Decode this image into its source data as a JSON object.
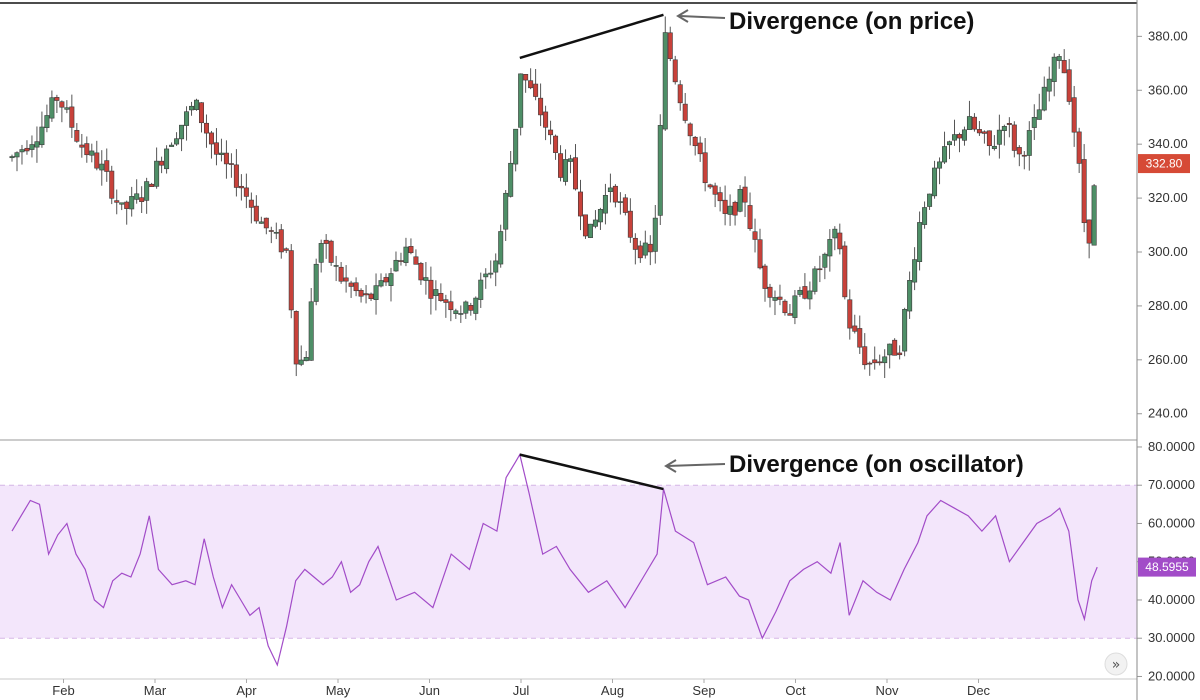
{
  "colors": {
    "up": "#4e8f67",
    "down": "#c8413a",
    "oscillator": "#a24cc8",
    "band_fill": "#f3e6fb",
    "band_line": "#d5b6e6",
    "divergence": "#111111",
    "price_badge": "#d64a36",
    "osc_badge": "#a24cc8"
  },
  "chart_data": [
    {
      "type": "candlestick",
      "title": "",
      "ylim": [
        231,
        392
      ],
      "yticks": [
        "240.00",
        "260.00",
        "280.00",
        "300.00",
        "320.00",
        "340.00",
        "360.00",
        "380.00"
      ],
      "ytick_values": [
        240,
        260,
        280,
        300,
        320,
        340,
        360,
        380
      ],
      "last_price_label": "332.80",
      "last_price": 332.8,
      "divergence": {
        "from": {
          "month": 5.55,
          "value": 372
        },
        "to": {
          "month": 7.12,
          "value": 388
        }
      },
      "annotation": "Divergence (on price)",
      "series": [
        {
          "name": "price-path",
          "x_months": [
            0,
            0.3,
            0.5,
            0.75,
            1,
            1.2,
            1.45,
            1.7,
            2,
            2.25,
            2.5,
            2.7,
            3,
            3.1,
            3.2,
            3.35,
            3.6,
            3.85,
            4,
            4.3,
            4.6,
            4.95,
            5,
            5.3,
            5.5,
            5.55,
            5.8,
            6,
            6.1,
            6.3,
            6.55,
            6.8,
            7,
            7.08,
            7.12,
            7.3,
            7.55,
            7.8,
            8,
            8.07,
            8.2,
            8.5,
            8.8,
            9,
            9.05,
            9.12,
            9.35,
            9.7,
            9.9,
            10,
            10.25,
            10.45,
            10.7,
            10.85,
            11,
            11.15,
            11.3,
            11.45,
            11.55,
            11.65,
            11.75,
            11.86
          ],
          "values": [
            335,
            345,
            358,
            340,
            330,
            315,
            322,
            340,
            355,
            335,
            325,
            312,
            300,
            262,
            258,
            305,
            290,
            282,
            285,
            302,
            285,
            278,
            280,
            298,
            345,
            368,
            350,
            330,
            332,
            305,
            326,
            303,
            298,
            340,
            382,
            358,
            330,
            312,
            322,
            310,
            290,
            278,
            292,
            306,
            302,
            276,
            258,
            265,
            308,
            322,
            340,
            348,
            338,
            350,
            335,
            345,
            360,
            375,
            360,
            335,
            300,
            332.8
          ]
        }
      ]
    },
    {
      "type": "line",
      "ylim": [
        19.6,
        81.3
      ],
      "yticks": [
        "20.0000",
        "30.0000",
        "40.0000",
        "50.0000",
        "60.0000",
        "70.0000",
        "80.0000"
      ],
      "ytick_values": [
        20,
        30,
        40,
        50,
        60,
        70,
        80
      ],
      "band": [
        30,
        70
      ],
      "last_value_label": "48.5955",
      "last_value": 48.5955,
      "divergence": {
        "from": {
          "month": 5.55,
          "value": 78
        },
        "to": {
          "month": 7.12,
          "value": 69
        }
      },
      "annotation": "Divergence (on oscillator)",
      "series": [
        {
          "name": "oscillator",
          "x": [
            0,
            0.1,
            0.2,
            0.3,
            0.4,
            0.5,
            0.6,
            0.7,
            0.8,
            0.9,
            1,
            1.1,
            1.2,
            1.3,
            1.4,
            1.5,
            1.6,
            1.75,
            1.9,
            2,
            2.1,
            2.2,
            2.3,
            2.4,
            2.5,
            2.6,
            2.7,
            2.8,
            2.9,
            3,
            3.1,
            3.2,
            3.3,
            3.4,
            3.5,
            3.6,
            3.7,
            3.8,
            3.9,
            4,
            4.2,
            4.4,
            4.6,
            4.8,
            5,
            5.15,
            5.3,
            5.4,
            5.5,
            5.55,
            5.65,
            5.8,
            5.95,
            6.1,
            6.3,
            6.5,
            6.7,
            6.9,
            7.05,
            7.12,
            7.25,
            7.45,
            7.6,
            7.8,
            7.95,
            8.05,
            8.2,
            8.35,
            8.5,
            8.65,
            8.8,
            8.95,
            9.05,
            9.15,
            9.3,
            9.45,
            9.6,
            9.75,
            9.9,
            10,
            10.15,
            10.3,
            10.45,
            10.6,
            10.75,
            10.9,
            11.05,
            11.2,
            11.35,
            11.45,
            11.55,
            11.65,
            11.72,
            11.8,
            11.86
          ],
          "values": [
            58,
            62,
            66,
            65,
            52,
            57,
            60,
            52,
            48,
            40,
            38,
            45,
            47,
            46,
            52,
            62,
            48,
            44,
            45,
            44,
            56,
            46,
            38,
            44,
            40,
            36,
            38,
            28,
            23,
            33,
            45,
            48,
            46,
            44,
            46,
            50,
            42,
            44,
            50,
            54,
            40,
            42,
            38,
            52,
            48,
            60,
            58,
            72,
            76,
            78,
            68,
            52,
            54,
            48,
            42,
            45,
            38,
            46,
            52,
            69,
            58,
            55,
            44,
            46,
            41,
            40,
            30,
            37,
            45,
            48,
            50,
            47,
            55,
            36,
            45,
            42,
            40,
            48,
            55,
            62,
            66,
            64,
            62,
            58,
            62,
            50,
            55,
            60,
            62,
            64,
            58,
            40,
            35,
            45,
            48.6
          ]
        }
      ]
    }
  ],
  "x_axis": {
    "months": [
      "Feb",
      "Mar",
      "Apr",
      "May",
      "Jun",
      "Jul",
      "Aug",
      "Sep",
      "Oct",
      "Nov",
      "Dec"
    ],
    "month_values": [
      1,
      2,
      3,
      4,
      5,
      6,
      7,
      8,
      9,
      10,
      11
    ]
  },
  "ui": {
    "scroll_glyph": "»"
  }
}
